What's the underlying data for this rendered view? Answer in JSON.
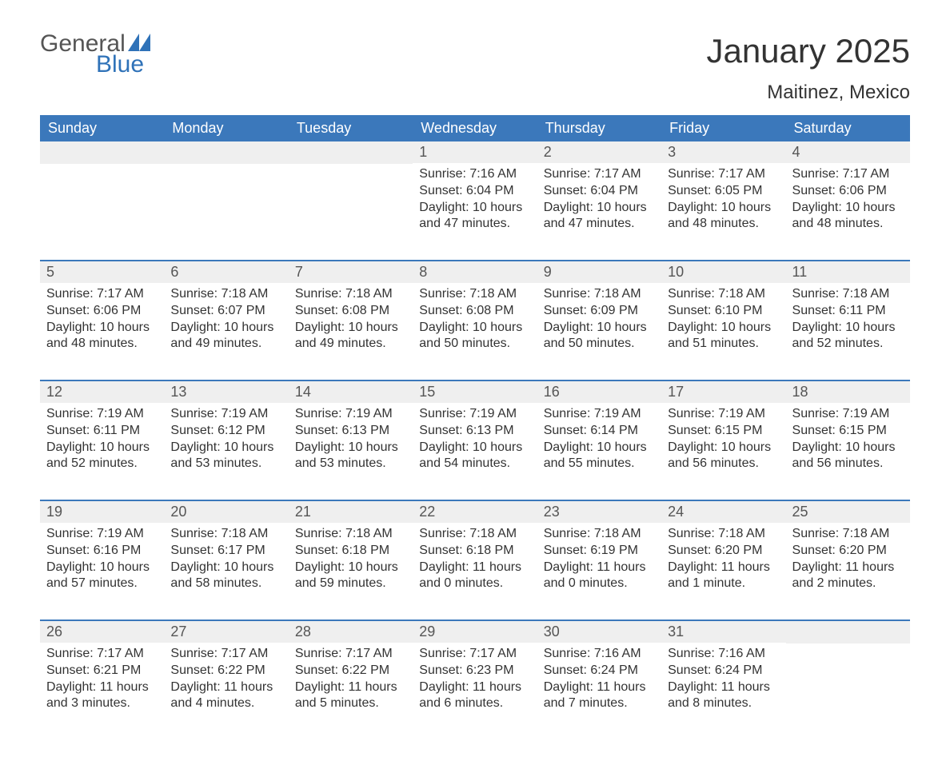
{
  "logo": {
    "word1": "General",
    "word2": "Blue",
    "flag_color": "#2f72b8"
  },
  "title": "January 2025",
  "location": "Maitinez, Mexico",
  "colors": {
    "header_bg": "#3b78bb",
    "header_text": "#ffffff",
    "daynum_bg": "#efefef",
    "daynum_text": "#555555",
    "body_text": "#333333",
    "week_border": "#3b78bb",
    "page_bg": "#ffffff"
  },
  "typography": {
    "title_fontsize": 42,
    "location_fontsize": 24,
    "header_fontsize": 18,
    "daynum_fontsize": 18,
    "body_fontsize": 16
  },
  "day_headers": [
    "Sunday",
    "Monday",
    "Tuesday",
    "Wednesday",
    "Thursday",
    "Friday",
    "Saturday"
  ],
  "weeks": [
    [
      {
        "num": "",
        "sunrise": "",
        "sunset": "",
        "daylight": ""
      },
      {
        "num": "",
        "sunrise": "",
        "sunset": "",
        "daylight": ""
      },
      {
        "num": "",
        "sunrise": "",
        "sunset": "",
        "daylight": ""
      },
      {
        "num": "1",
        "sunrise": "Sunrise: 7:16 AM",
        "sunset": "Sunset: 6:04 PM",
        "daylight": "Daylight: 10 hours and 47 minutes."
      },
      {
        "num": "2",
        "sunrise": "Sunrise: 7:17 AM",
        "sunset": "Sunset: 6:04 PM",
        "daylight": "Daylight: 10 hours and 47 minutes."
      },
      {
        "num": "3",
        "sunrise": "Sunrise: 7:17 AM",
        "sunset": "Sunset: 6:05 PM",
        "daylight": "Daylight: 10 hours and 48 minutes."
      },
      {
        "num": "4",
        "sunrise": "Sunrise: 7:17 AM",
        "sunset": "Sunset: 6:06 PM",
        "daylight": "Daylight: 10 hours and 48 minutes."
      }
    ],
    [
      {
        "num": "5",
        "sunrise": "Sunrise: 7:17 AM",
        "sunset": "Sunset: 6:06 PM",
        "daylight": "Daylight: 10 hours and 48 minutes."
      },
      {
        "num": "6",
        "sunrise": "Sunrise: 7:18 AM",
        "sunset": "Sunset: 6:07 PM",
        "daylight": "Daylight: 10 hours and 49 minutes."
      },
      {
        "num": "7",
        "sunrise": "Sunrise: 7:18 AM",
        "sunset": "Sunset: 6:08 PM",
        "daylight": "Daylight: 10 hours and 49 minutes."
      },
      {
        "num": "8",
        "sunrise": "Sunrise: 7:18 AM",
        "sunset": "Sunset: 6:08 PM",
        "daylight": "Daylight: 10 hours and 50 minutes."
      },
      {
        "num": "9",
        "sunrise": "Sunrise: 7:18 AM",
        "sunset": "Sunset: 6:09 PM",
        "daylight": "Daylight: 10 hours and 50 minutes."
      },
      {
        "num": "10",
        "sunrise": "Sunrise: 7:18 AM",
        "sunset": "Sunset: 6:10 PM",
        "daylight": "Daylight: 10 hours and 51 minutes."
      },
      {
        "num": "11",
        "sunrise": "Sunrise: 7:18 AM",
        "sunset": "Sunset: 6:11 PM",
        "daylight": "Daylight: 10 hours and 52 minutes."
      }
    ],
    [
      {
        "num": "12",
        "sunrise": "Sunrise: 7:19 AM",
        "sunset": "Sunset: 6:11 PM",
        "daylight": "Daylight: 10 hours and 52 minutes."
      },
      {
        "num": "13",
        "sunrise": "Sunrise: 7:19 AM",
        "sunset": "Sunset: 6:12 PM",
        "daylight": "Daylight: 10 hours and 53 minutes."
      },
      {
        "num": "14",
        "sunrise": "Sunrise: 7:19 AM",
        "sunset": "Sunset: 6:13 PM",
        "daylight": "Daylight: 10 hours and 53 minutes."
      },
      {
        "num": "15",
        "sunrise": "Sunrise: 7:19 AM",
        "sunset": "Sunset: 6:13 PM",
        "daylight": "Daylight: 10 hours and 54 minutes."
      },
      {
        "num": "16",
        "sunrise": "Sunrise: 7:19 AM",
        "sunset": "Sunset: 6:14 PM",
        "daylight": "Daylight: 10 hours and 55 minutes."
      },
      {
        "num": "17",
        "sunrise": "Sunrise: 7:19 AM",
        "sunset": "Sunset: 6:15 PM",
        "daylight": "Daylight: 10 hours and 56 minutes."
      },
      {
        "num": "18",
        "sunrise": "Sunrise: 7:19 AM",
        "sunset": "Sunset: 6:15 PM",
        "daylight": "Daylight: 10 hours and 56 minutes."
      }
    ],
    [
      {
        "num": "19",
        "sunrise": "Sunrise: 7:19 AM",
        "sunset": "Sunset: 6:16 PM",
        "daylight": "Daylight: 10 hours and 57 minutes."
      },
      {
        "num": "20",
        "sunrise": "Sunrise: 7:18 AM",
        "sunset": "Sunset: 6:17 PM",
        "daylight": "Daylight: 10 hours and 58 minutes."
      },
      {
        "num": "21",
        "sunrise": "Sunrise: 7:18 AM",
        "sunset": "Sunset: 6:18 PM",
        "daylight": "Daylight: 10 hours and 59 minutes."
      },
      {
        "num": "22",
        "sunrise": "Sunrise: 7:18 AM",
        "sunset": "Sunset: 6:18 PM",
        "daylight": "Daylight: 11 hours and 0 minutes."
      },
      {
        "num": "23",
        "sunrise": "Sunrise: 7:18 AM",
        "sunset": "Sunset: 6:19 PM",
        "daylight": "Daylight: 11 hours and 0 minutes."
      },
      {
        "num": "24",
        "sunrise": "Sunrise: 7:18 AM",
        "sunset": "Sunset: 6:20 PM",
        "daylight": "Daylight: 11 hours and 1 minute."
      },
      {
        "num": "25",
        "sunrise": "Sunrise: 7:18 AM",
        "sunset": "Sunset: 6:20 PM",
        "daylight": "Daylight: 11 hours and 2 minutes."
      }
    ],
    [
      {
        "num": "26",
        "sunrise": "Sunrise: 7:17 AM",
        "sunset": "Sunset: 6:21 PM",
        "daylight": "Daylight: 11 hours and 3 minutes."
      },
      {
        "num": "27",
        "sunrise": "Sunrise: 7:17 AM",
        "sunset": "Sunset: 6:22 PM",
        "daylight": "Daylight: 11 hours and 4 minutes."
      },
      {
        "num": "28",
        "sunrise": "Sunrise: 7:17 AM",
        "sunset": "Sunset: 6:22 PM",
        "daylight": "Daylight: 11 hours and 5 minutes."
      },
      {
        "num": "29",
        "sunrise": "Sunrise: 7:17 AM",
        "sunset": "Sunset: 6:23 PM",
        "daylight": "Daylight: 11 hours and 6 minutes."
      },
      {
        "num": "30",
        "sunrise": "Sunrise: 7:16 AM",
        "sunset": "Sunset: 6:24 PM",
        "daylight": "Daylight: 11 hours and 7 minutes."
      },
      {
        "num": "31",
        "sunrise": "Sunrise: 7:16 AM",
        "sunset": "Sunset: 6:24 PM",
        "daylight": "Daylight: 11 hours and 8 minutes."
      },
      {
        "num": "",
        "sunrise": "",
        "sunset": "",
        "daylight": ""
      }
    ]
  ]
}
